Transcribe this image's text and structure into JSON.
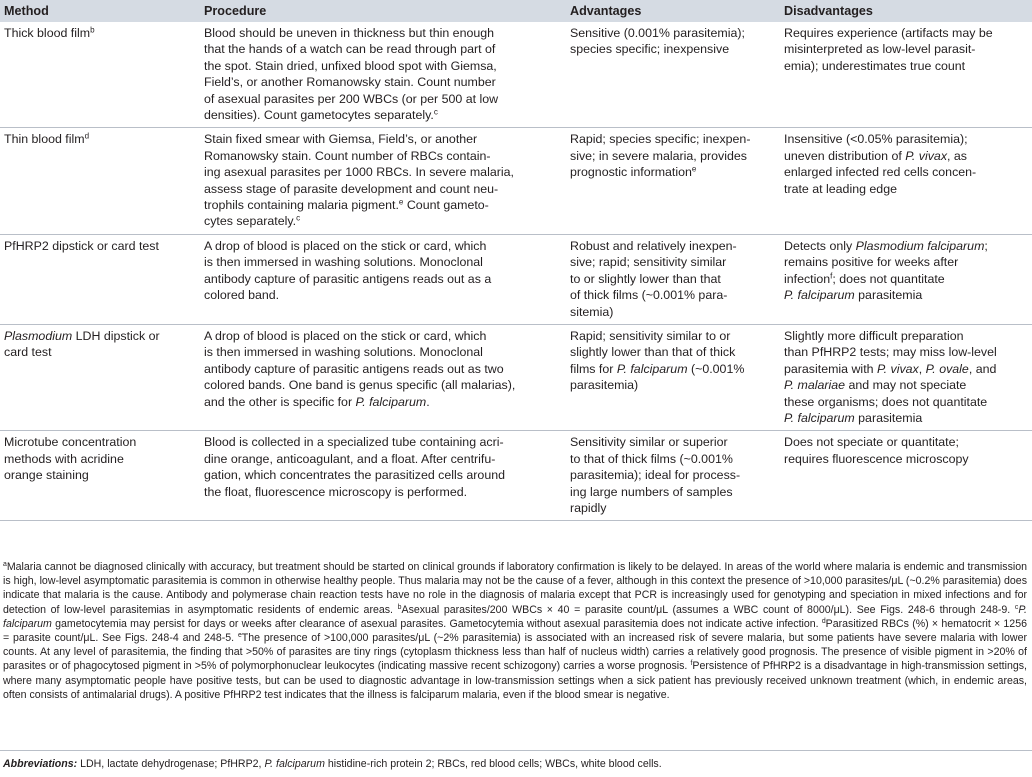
{
  "table": {
    "headers": [
      "Method",
      "Procedure",
      "Advantages",
      "Disadvantages"
    ],
    "rows": [
      [
        [
          [
            "Thick blood film",
            {
              "sup": "b"
            }
          ]
        ],
        [
          "Blood should be uneven in thickness but thin enough",
          "that the hands of a watch can be read through part of",
          "the spot. Stain dried, unfixed blood spot with Giemsa,",
          "Field’s, or another Romanowsky stain. Count number",
          "of asexual parasites per 200 WBCs (or per 500 at low",
          [
            "densities). Count gametocytes separately.",
            {
              "sup": "c"
            }
          ]
        ],
        [
          "Sensitive (0.001% parasitemia);",
          "species specific; inexpensive"
        ],
        [
          "Requires experience (artifacts may be",
          "misinterpreted as low-level parasit-",
          "emia); underestimates true count"
        ]
      ],
      [
        [
          [
            "Thin blood film",
            {
              "sup": "d"
            }
          ]
        ],
        [
          "Stain fixed smear with Giemsa, Field’s, or another",
          "Romanowsky stain. Count number of RBCs contain-",
          "ing asexual parasites per 1000 RBCs. In severe malaria,",
          "assess stage of parasite development and count neu-",
          [
            "trophils containing malaria pigment.",
            {
              "sup": "e"
            },
            " Count gameto-"
          ],
          [
            "cytes separately.",
            {
              "sup": "c"
            }
          ]
        ],
        [
          "Rapid; species specific; inexpen-",
          "sive; in severe malaria, provides",
          [
            "prognostic information",
            {
              "sup": "e"
            }
          ]
        ],
        [
          "Insensitive (<0.05% parasitemia);",
          [
            "uneven distribution of ",
            {
              "i": "P. vivax"
            },
            ", as"
          ],
          "enlarged infected red cells concen-",
          "trate at leading edge"
        ]
      ],
      [
        [
          "PfHRP2 dipstick or card test"
        ],
        [
          "A drop of blood is placed on the stick or card, which",
          "is then immersed in washing solutions. Monoclonal",
          "antibody capture of parasitic antigens reads out as a",
          "colored band."
        ],
        [
          "Robust and relatively inexpen-",
          "sive; rapid; sensitivity similar",
          "to or slightly lower than that",
          "of thick films (~0.001% para-",
          "sitemia)"
        ],
        [
          [
            "Detects only ",
            {
              "i": "Plasmodium falciparum"
            },
            ";"
          ],
          "remains positive for weeks after",
          [
            "infection",
            {
              "sup": "f"
            },
            "; does not quantitate"
          ],
          [
            {
              "i": "P. falciparum"
            },
            " parasitemia"
          ]
        ]
      ],
      [
        [
          [
            {
              "i": "Plasmodium"
            },
            " LDH dipstick or"
          ],
          "card test"
        ],
        [
          "A drop of blood is placed on the stick or card, which",
          "is then immersed in washing solutions. Monoclonal",
          "antibody capture of parasitic antigens reads out as two",
          "colored bands. One band is genus specific (all malarias),",
          [
            "and the other is specific for ",
            {
              "i": "P. falciparum"
            },
            "."
          ]
        ],
        [
          "Rapid; sensitivity similar to or",
          "slightly lower than that of thick",
          [
            "films for ",
            {
              "i": "P. falciparum"
            },
            " (~0.001%"
          ],
          "parasitemia)"
        ],
        [
          "Slightly more difficult preparation",
          "than PfHRP2 tests; may miss low-level",
          [
            "parasitemia with ",
            {
              "i": "P. vivax"
            },
            ", ",
            {
              "i": "P. ovale"
            },
            ", and"
          ],
          [
            {
              "i": "P. malariae"
            },
            " and may not speciate"
          ],
          "these organisms; does not quantitate",
          [
            {
              "i": "P. falciparum"
            },
            " parasitemia"
          ]
        ]
      ],
      [
        [
          "Microtube concentration",
          "methods with acridine",
          "orange staining"
        ],
        [
          "Blood is collected in a specialized tube containing acri-",
          "dine orange, anticoagulant, and a float. After centrifu-",
          "gation, which concentrates the parasitized cells around",
          "the float, fluorescence microscopy is performed."
        ],
        [
          "Sensitivity similar or superior",
          "to that of thick films (~0.001%",
          "parasitemia); ideal for process-",
          "ing large numbers of samples",
          "rapidly"
        ],
        [
          "Does not speciate or quantitate;",
          "requires fluorescence microscopy"
        ]
      ]
    ]
  },
  "footnotes": [
    {
      "sup": "a"
    },
    "Malaria cannot be diagnosed clinically with accuracy, but treatment should be started on clinical grounds if laboratory confirmation is likely to be delayed. In areas of the world where malaria is endemic and transmission is high, low-level asymptomatic parasitemia is common in otherwise healthy people. Thus malaria may not be the cause of a fever, although in this context the presence of >10,000 parasites/μL (~0.2% parasitemia) does indicate that malaria is the cause. Antibody and polymerase chain reaction tests have no role in the diagnosis of malaria except that PCR is increasingly used for genotyping and speciation in mixed infections and for detection of low-level parasitemias in asymptomatic residents of endemic areas. ",
    {
      "sup": "b"
    },
    "Asexual parasites/200 WBCs × 40 = parasite count/μL (assumes a WBC count of 8000/μL). See Figs. 248-6 through 248-9. ",
    {
      "sup": "c"
    },
    {
      "i": "P. falciparum"
    },
    " gametocytemia may persist for days or weeks after clearance of asexual parasites. Gametocytemia without asexual parasitemia does not indicate active infection. ",
    {
      "sup": "d"
    },
    "Parasitized RBCs (%) × hematocrit × 1256 = parasite count/μL. See Figs. 248-4 and 248-5. ",
    {
      "sup": "e"
    },
    "The presence of >100,000 parasites/μL (~2% parasitemia) is associated with an increased risk of severe malaria, but some patients have severe malaria with lower counts. At any level of parasitemia, the finding that >50% of parasites are tiny rings (cytoplasm thickness less than half of nucleus width) carries a relatively good prognosis. The presence of visible pigment in >20% of parasites or of phagocytosed pigment in >5% of polymorphonuclear leukocytes (indicating massive recent schizogony) carries a worse prognosis. ",
    {
      "sup": "f"
    },
    "Persistence of PfHRP2 is a disadvantage in high-transmission settings, where many asymptomatic people have positive tests, but can be used to diagnostic advantage in low-transmission settings when a sick patient has previously received unknown treatment (which, in endemic areas, often consists of antimalarial drugs). A positive PfHRP2 test indicates that the illness is falciparum malaria, even if the blood smear is negative."
  ],
  "abbreviations": [
    {
      "bi": "Abbreviations:"
    },
    " LDH, lactate dehydrogenase; PfHRP2, ",
    {
      "i": "P. falciparum"
    },
    " histidine-rich protein 2; RBCs, red blood cells; WBCs, white blood cells."
  ]
}
